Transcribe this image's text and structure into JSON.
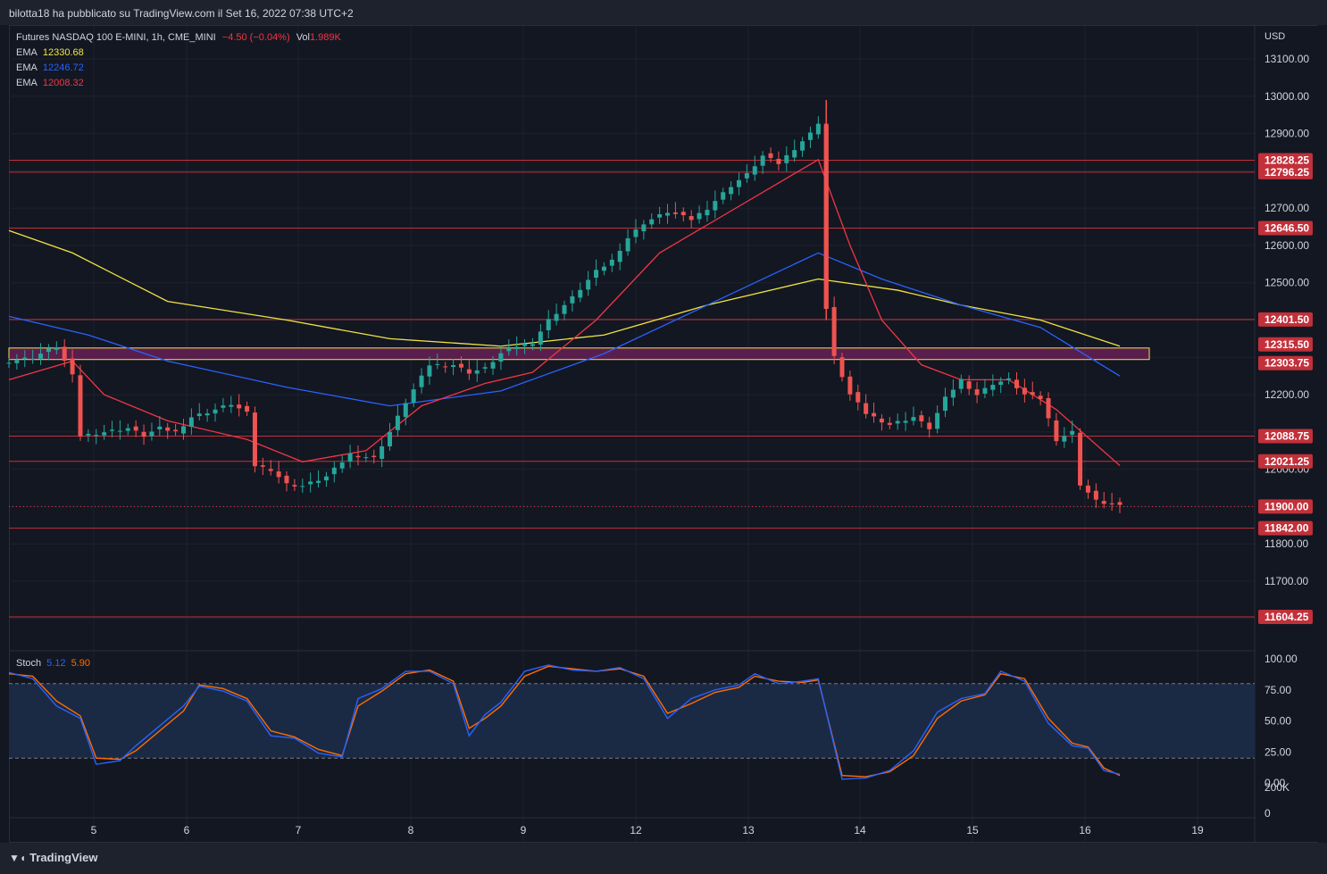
{
  "header": {
    "publisher": "bilotta18 ha pubblicato su TradingView.com il Set 16, 2022 07:38 UTC+2"
  },
  "footer": {
    "brand": "TradingView"
  },
  "legend": {
    "symbol": "Futures NASDAQ 100 E-MINI, 1h, CME_MINI",
    "change": "−4.50 (−0.04%)",
    "vol_label": "Vol",
    "vol_value": "1.989K",
    "ema": [
      {
        "label": "EMA",
        "value": "12330.68",
        "color": "#f0e442"
      },
      {
        "label": "EMA",
        "value": "12246.72",
        "color": "#2962ff"
      },
      {
        "label": "EMA",
        "value": "12008.32",
        "color": "#f23645"
      }
    ],
    "stoch": {
      "label": "Stoch",
      "k": "5.12",
      "d": "5.90",
      "k_color": "#2962ff",
      "d_color": "#ff6d00"
    }
  },
  "chart_data": {
    "type": "candlestick",
    "currency": "USD",
    "price_ticks": [
      "13100.00",
      "13000.00",
      "12900.00",
      "12700.00",
      "12600.00",
      "12500.00",
      "12200.00",
      "12000.00",
      "11800.00",
      "11700.00"
    ],
    "x_labels": [
      "5",
      "6",
      "7",
      "8",
      "9",
      "12",
      "13",
      "14",
      "15",
      "16",
      "19"
    ],
    "levels": [
      {
        "label": "12828.25",
        "value": 12828.25
      },
      {
        "label": "12796.25",
        "value": 12796.25
      },
      {
        "label": "12646.50",
        "value": 12646.5
      },
      {
        "label": "12401.50",
        "value": 12401.5
      },
      {
        "label": "12088.75",
        "value": 12088.75
      },
      {
        "label": "12021.25",
        "value": 12021.25
      },
      {
        "label": "11842.00",
        "value": 11842
      },
      {
        "label": "11604.25",
        "value": 11604.25
      }
    ],
    "zone": {
      "high_label": "12315.50",
      "low_label": "12303.75",
      "high": 12315.5,
      "low": 12303.75
    },
    "last_price": {
      "label": "11900.00",
      "value": 11900
    },
    "close_path": [
      [
        0,
        12290
      ],
      [
        3,
        12300
      ],
      [
        6,
        12330
      ],
      [
        8,
        12250
      ],
      [
        9,
        12090
      ],
      [
        12,
        12100
      ],
      [
        15,
        12110
      ],
      [
        17,
        12090
      ],
      [
        19,
        12110
      ],
      [
        21,
        12100
      ],
      [
        23,
        12140
      ],
      [
        26,
        12160
      ],
      [
        28,
        12175
      ],
      [
        30,
        12150
      ],
      [
        31,
        12010
      ],
      [
        33,
        12000
      ],
      [
        35,
        11960
      ],
      [
        37,
        11955
      ],
      [
        40,
        11980
      ],
      [
        43,
        12040
      ],
      [
        46,
        12030
      ],
      [
        48,
        12100
      ],
      [
        50,
        12180
      ],
      [
        53,
        12280
      ],
      [
        56,
        12280
      ],
      [
        58,
        12260
      ],
      [
        60,
        12270
      ],
      [
        62,
        12310
      ],
      [
        64,
        12330
      ],
      [
        66,
        12340
      ],
      [
        68,
        12400
      ],
      [
        71,
        12460
      ],
      [
        74,
        12530
      ],
      [
        76,
        12560
      ],
      [
        78,
        12620
      ],
      [
        80,
        12660
      ],
      [
        83,
        12690
      ],
      [
        86,
        12670
      ],
      [
        88,
        12700
      ],
      [
        91,
        12760
      ],
      [
        93,
        12790
      ],
      [
        95,
        12840
      ],
      [
        97,
        12820
      ],
      [
        99,
        12860
      ],
      [
        101,
        12900
      ],
      [
        102,
        12930
      ],
      [
        103,
        12430
      ],
      [
        104,
        12300
      ],
      [
        106,
        12200
      ],
      [
        108,
        12150
      ],
      [
        111,
        12120
      ],
      [
        114,
        12140
      ],
      [
        116,
        12110
      ],
      [
        118,
        12190
      ],
      [
        120,
        12240
      ],
      [
        122,
        12200
      ],
      [
        124,
        12230
      ],
      [
        126,
        12240
      ],
      [
        128,
        12200
      ],
      [
        130,
        12190
      ],
      [
        132,
        12080
      ],
      [
        134,
        12100
      ],
      [
        135,
        11960
      ],
      [
        137,
        11915
      ],
      [
        140,
        11900
      ]
    ],
    "ema_yellow": [
      [
        0,
        12640
      ],
      [
        8,
        12580
      ],
      [
        20,
        12450
      ],
      [
        35,
        12400
      ],
      [
        48,
        12350
      ],
      [
        62,
        12330
      ],
      [
        75,
        12360
      ],
      [
        88,
        12440
      ],
      [
        102,
        12510
      ],
      [
        112,
        12480
      ],
      [
        120,
        12440
      ],
      [
        130,
        12400
      ],
      [
        140,
        12330
      ]
    ],
    "ema_blue": [
      [
        0,
        12410
      ],
      [
        10,
        12360
      ],
      [
        20,
        12290
      ],
      [
        35,
        12220
      ],
      [
        48,
        12170
      ],
      [
        62,
        12210
      ],
      [
        75,
        12310
      ],
      [
        88,
        12440
      ],
      [
        102,
        12580
      ],
      [
        110,
        12510
      ],
      [
        120,
        12440
      ],
      [
        130,
        12380
      ],
      [
        140,
        12250
      ]
    ],
    "ema_red": [
      [
        0,
        12240
      ],
      [
        8,
        12290
      ],
      [
        12,
        12200
      ],
      [
        20,
        12130
      ],
      [
        30,
        12080
      ],
      [
        37,
        12020
      ],
      [
        45,
        12050
      ],
      [
        52,
        12170
      ],
      [
        60,
        12230
      ],
      [
        66,
        12260
      ],
      [
        74,
        12400
      ],
      [
        82,
        12580
      ],
      [
        90,
        12680
      ],
      [
        98,
        12780
      ],
      [
        102,
        12830
      ],
      [
        106,
        12600
      ],
      [
        110,
        12400
      ],
      [
        115,
        12280
      ],
      [
        120,
        12240
      ],
      [
        126,
        12240
      ],
      [
        132,
        12160
      ],
      [
        140,
        12010
      ]
    ],
    "stoch": {
      "ticks": [
        "100.00",
        "75.00",
        "50.00",
        "25.00",
        "0.00"
      ],
      "overbought": 80,
      "oversold": 20,
      "k": [
        [
          0,
          89
        ],
        [
          3,
          84
        ],
        [
          6,
          62
        ],
        [
          9,
          52
        ],
        [
          11,
          15
        ],
        [
          14,
          18
        ],
        [
          16,
          30
        ],
        [
          19,
          46
        ],
        [
          22,
          62
        ],
        [
          24,
          78
        ],
        [
          27,
          74
        ],
        [
          30,
          66
        ],
        [
          33,
          38
        ],
        [
          36,
          36
        ],
        [
          39,
          24
        ],
        [
          42,
          21
        ],
        [
          44,
          68
        ],
        [
          47,
          76
        ],
        [
          50,
          90
        ],
        [
          53,
          90
        ],
        [
          56,
          80
        ],
        [
          58,
          38
        ],
        [
          60,
          55
        ],
        [
          62,
          65
        ],
        [
          65,
          90
        ],
        [
          68,
          95
        ],
        [
          71,
          91
        ],
        [
          74,
          90
        ],
        [
          77,
          93
        ],
        [
          80,
          84
        ],
        [
          83,
          52
        ],
        [
          86,
          68
        ],
        [
          89,
          75
        ],
        [
          92,
          79
        ],
        [
          94,
          88
        ],
        [
          97,
          80
        ],
        [
          100,
          82
        ],
        [
          102,
          84
        ],
        [
          105,
          3
        ],
        [
          108,
          4
        ],
        [
          111,
          10
        ],
        [
          114,
          26
        ],
        [
          117,
          57
        ],
        [
          120,
          68
        ],
        [
          123,
          72
        ],
        [
          125,
          90
        ],
        [
          128,
          82
        ],
        [
          131,
          48
        ],
        [
          134,
          30
        ],
        [
          136,
          28
        ],
        [
          138,
          10
        ],
        [
          140,
          7
        ]
      ],
      "d": [
        [
          0,
          88
        ],
        [
          3,
          86
        ],
        [
          6,
          66
        ],
        [
          9,
          54
        ],
        [
          11,
          20
        ],
        [
          14,
          19
        ],
        [
          16,
          26
        ],
        [
          19,
          42
        ],
        [
          22,
          58
        ],
        [
          24,
          79
        ],
        [
          27,
          76
        ],
        [
          30,
          68
        ],
        [
          33,
          42
        ],
        [
          36,
          37
        ],
        [
          39,
          27
        ],
        [
          42,
          22
        ],
        [
          44,
          62
        ],
        [
          47,
          74
        ],
        [
          50,
          88
        ],
        [
          53,
          91
        ],
        [
          56,
          82
        ],
        [
          58,
          44
        ],
        [
          60,
          52
        ],
        [
          62,
          62
        ],
        [
          65,
          86
        ],
        [
          68,
          94
        ],
        [
          71,
          92
        ],
        [
          74,
          90
        ],
        [
          77,
          92
        ],
        [
          80,
          86
        ],
        [
          83,
          56
        ],
        [
          86,
          64
        ],
        [
          89,
          73
        ],
        [
          92,
          77
        ],
        [
          94,
          86
        ],
        [
          97,
          82
        ],
        [
          100,
          81
        ],
        [
          102,
          83
        ],
        [
          105,
          6
        ],
        [
          108,
          5
        ],
        [
          111,
          9
        ],
        [
          114,
          22
        ],
        [
          117,
          52
        ],
        [
          120,
          66
        ],
        [
          123,
          71
        ],
        [
          125,
          88
        ],
        [
          128,
          84
        ],
        [
          131,
          52
        ],
        [
          134,
          32
        ],
        [
          136,
          29
        ],
        [
          138,
          12
        ],
        [
          140,
          6
        ]
      ]
    },
    "volume_ticks": [
      "200K",
      "0"
    ]
  }
}
